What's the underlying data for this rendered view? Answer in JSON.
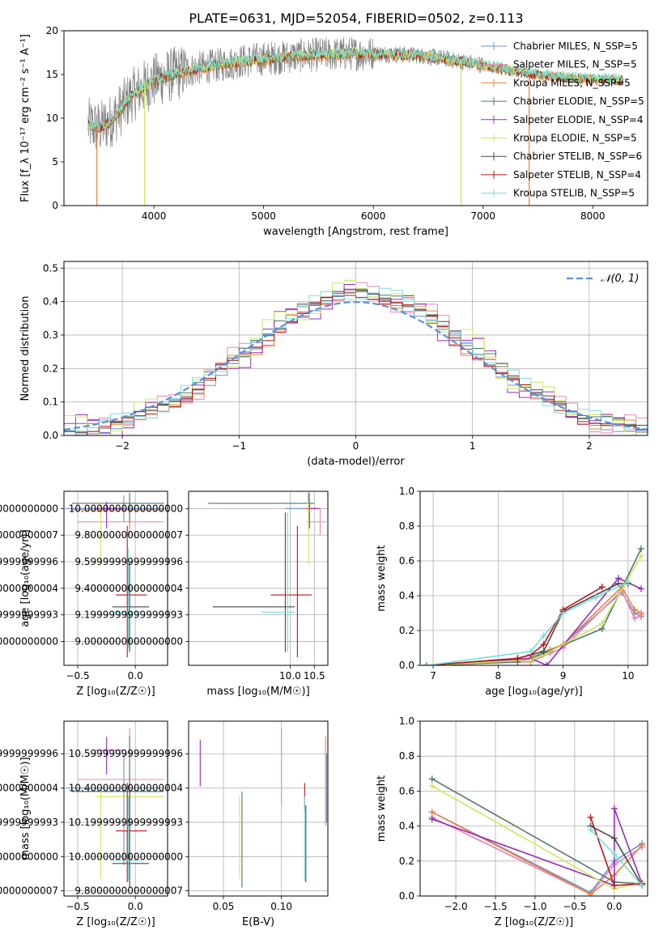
{
  "figure_title": "PLATE=0631, MJD=52054, FIBERID=0502, z=0.113",
  "colors": {
    "Chabrier MILES": "#6f8fd0",
    "Salpeter MILES": "#e884b8",
    "Kroupa MILES": "#e8823c",
    "Chabrier ELODIE": "#4f7a68",
    "Salpeter ELODIE": "#9a2cb8",
    "Kroupa ELODIE": "#c9e85a",
    "Chabrier STELIB": "#4a4a4a",
    "Salpeter STELIB": "#b81818",
    "Kroupa STELIB": "#78dcdc",
    "normal": "#5b8fd9",
    "grid": "#b0b0b0"
  },
  "chart_data": [
    {
      "id": "spectrum",
      "type": "line",
      "title": "PLATE=0631, MJD=52054, FIBERID=0502, z=0.113",
      "xlabel": "wavelength [Angstrom, rest frame]",
      "ylabel": "Flux [f_λ 10⁻¹⁷ erg cm⁻² s⁻¹ A⁻¹]",
      "xlim": [
        3180,
        8500
      ],
      "ylim": [
        0,
        20
      ],
      "xticks": [
        4000,
        5000,
        6000,
        7000,
        8000
      ],
      "yticks": [
        0,
        5,
        10,
        15,
        20
      ],
      "grid": false,
      "legend": "top-right",
      "legend_entries": [
        "Chabrier MILES, N_SSP=5",
        "Salpeter MILES, N_SSP=5",
        "Kroupa MILES, N_SSP=5",
        "Chabrier ELODIE, N_SSP=5",
        "Salpeter ELODIE, N_SSP=4",
        "Kroupa ELODIE, N_SSP=5",
        "Chabrier STELIB, N_SSP=6",
        "Salpeter STELIB, N_SSP=4",
        "Kroupa STELIB, N_SSP=5"
      ],
      "continuum": {
        "x": [
          3400,
          3500,
          3600,
          3700,
          3800,
          3900,
          4000,
          4200,
          4400,
          4600,
          4800,
          5000,
          5200,
          5400,
          5600,
          5800,
          6000,
          6200,
          6400,
          6600,
          6800,
          7000,
          7200,
          7400,
          7600,
          7800,
          8000,
          8280
        ],
        "y": [
          9.2,
          8.9,
          9.6,
          11.0,
          12.6,
          13.5,
          14.3,
          15.1,
          15.7,
          16.1,
          16.5,
          16.8,
          17.0,
          17.2,
          17.3,
          17.4,
          17.4,
          17.3,
          17.2,
          16.9,
          16.5,
          16.1,
          15.6,
          15.2,
          14.8,
          14.6,
          14.5,
          14.4
        ]
      },
      "spikes": [
        [
          3480,
          0
        ],
        [
          3915,
          0
        ],
        [
          6800,
          0
        ],
        [
          7420,
          0
        ]
      ]
    },
    {
      "id": "residuals",
      "type": "line",
      "xlabel": "(data-model)/error",
      "ylabel": "Normed distribution",
      "xlim": [
        -2.5,
        2.5
      ],
      "ylim": [
        0,
        0.52
      ],
      "xticks": [
        -2,
        -1,
        0,
        1,
        2
      ],
      "yticks": [
        0.0,
        0.1,
        0.2,
        0.3,
        0.4,
        0.5
      ],
      "grid": true,
      "legend": "top-right",
      "legend_entries": [
        "𝒩(0, 1)"
      ],
      "bin_width": 0.1,
      "series": [
        {
          "name": "Chabrier MILES",
          "shift": 0.0,
          "amp": 0.0
        },
        {
          "name": "Salpeter MILES",
          "shift": 0.5,
          "amp": 0.03
        },
        {
          "name": "Kroupa MILES",
          "shift": 1.1,
          "amp": 0.02
        },
        {
          "name": "Chabrier ELODIE",
          "shift": 1.7,
          "amp": 0.01
        },
        {
          "name": "Salpeter ELODIE",
          "shift": 2.3,
          "amp": 0.035
        },
        {
          "name": "Kroupa ELODIE",
          "shift": 2.9,
          "amp": 0.03
        },
        {
          "name": "Chabrier STELIB",
          "shift": 3.5,
          "amp": 0.0
        },
        {
          "name": "Salpeter STELIB",
          "shift": 4.1,
          "amp": 0.0
        },
        {
          "name": "Kroupa STELIB",
          "shift": 4.7,
          "amp": 0.015
        }
      ]
    },
    {
      "id": "age-vs-z",
      "type": "scatter",
      "xlabel": "Z [log₁₀(Z/Z☉)]",
      "ylabel": "age  [log₁₀(age/yr)]",
      "xlim": [
        -0.62,
        0.28
      ],
      "ylim": [
        8.82,
        10.13
      ],
      "xticks": [
        -0.5,
        0.0
      ],
      "yticks": [
        9.0,
        9.2,
        9.4,
        9.6,
        9.8,
        10.0
      ],
      "grid": true,
      "points": [
        {
          "name": "Chabrier MILES",
          "x": -0.1,
          "xlo": -0.6,
          "xhi": 0.25,
          "y": 10.0,
          "ylo": 9.9,
          "yhi": 10.1
        },
        {
          "name": "Salpeter MILES",
          "x": -0.05,
          "xlo": -0.5,
          "xhi": 0.25,
          "y": 9.9,
          "ylo": 9.8,
          "yhi": 10.0
        },
        {
          "name": "Kroupa MILES",
          "x": -0.05,
          "xlo": -0.55,
          "xhi": 0.25,
          "y": 9.99,
          "ylo": 9.85,
          "yhi": 10.12
        },
        {
          "name": "Chabrier ELODIE",
          "x": -0.05,
          "xlo": -0.55,
          "xhi": 0.25,
          "y": 10.04,
          "ylo": 9.9,
          "yhi": 10.12
        },
        {
          "name": "Salpeter ELODIE",
          "x": -0.25,
          "xlo": -0.35,
          "xhi": -0.1,
          "y": 10.0,
          "ylo": 9.85,
          "yhi": 10.05
        },
        {
          "name": "Kroupa ELODIE",
          "x": -0.3,
          "xlo": -0.35,
          "xhi": -0.25,
          "y": 9.98,
          "ylo": 9.58,
          "yhi": 10.05
        },
        {
          "name": "Chabrier STELIB",
          "x": -0.05,
          "xlo": -0.2,
          "xhi": 0.12,
          "y": 9.26,
          "ylo": 8.92,
          "yhi": 9.6
        },
        {
          "name": "Salpeter STELIB",
          "x": -0.07,
          "xlo": -0.17,
          "xhi": 0.1,
          "y": 9.35,
          "ylo": 8.88,
          "yhi": 9.87
        },
        {
          "name": "Kroupa STELIB",
          "x": -0.06,
          "xlo": -0.2,
          "xhi": 0.05,
          "y": 9.22,
          "ylo": 8.95,
          "yhi": 9.7
        }
      ]
    },
    {
      "id": "age-vs-mass",
      "type": "scatter",
      "xlabel": "mass [log₁₀(M/M☉)]",
      "ylabel": "",
      "xlim": [
        7.9,
        10.78
      ],
      "ylim": [
        8.82,
        10.13
      ],
      "xticks": [
        10.0,
        10.5
      ],
      "yticks": [
        9.0,
        9.2,
        9.4,
        9.6,
        9.8,
        10.0
      ],
      "grid": true,
      "points": [
        {
          "name": "Chabrier MILES",
          "x": 10.38,
          "xlo": 9.9,
          "xhi": 10.55,
          "y": 10.0,
          "ylo": 9.92,
          "yhi": 10.1
        },
        {
          "name": "Salpeter MILES",
          "x": 10.62,
          "xlo": 10.35,
          "xhi": 10.75,
          "y": 9.9,
          "ylo": 9.8,
          "yhi": 10.0
        },
        {
          "name": "Kroupa MILES",
          "x": 10.4,
          "xlo": 10.3,
          "xhi": 10.55,
          "y": 10.0,
          "ylo": 9.85,
          "yhi": 10.12
        },
        {
          "name": "Chabrier ELODIE",
          "x": 10.38,
          "xlo": 8.3,
          "xhi": 10.5,
          "y": 10.04,
          "ylo": 9.92,
          "yhi": 10.12
        },
        {
          "name": "Salpeter ELODIE",
          "x": 10.4,
          "xlo": 10.35,
          "xhi": 10.62,
          "y": 10.0,
          "ylo": 9.85,
          "yhi": 10.05
        },
        {
          "name": "Kroupa ELODIE",
          "x": 10.38,
          "xlo": 10.35,
          "xhi": 10.45,
          "y": 9.98,
          "ylo": 9.58,
          "yhi": 10.05
        },
        {
          "name": "Chabrier STELIB",
          "x": 9.9,
          "xlo": 8.4,
          "xhi": 10.1,
          "y": 9.26,
          "ylo": 8.92,
          "yhi": 9.97
        },
        {
          "name": "Salpeter STELIB",
          "x": 10.15,
          "xlo": 9.6,
          "xhi": 10.45,
          "y": 9.35,
          "ylo": 8.88,
          "yhi": 9.87
        },
        {
          "name": "Kroupa STELIB",
          "x": 9.95,
          "xlo": 9.4,
          "xhi": 10.1,
          "y": 9.22,
          "ylo": 8.92,
          "yhi": 9.97
        }
      ]
    },
    {
      "id": "mass-weight-vs-age",
      "type": "line",
      "xlabel": "age  [log₁₀(age/yr)]",
      "ylabel": "mass weight",
      "xlim": [
        6.8,
        10.3
      ],
      "ylim": [
        0,
        1.0
      ],
      "xticks": [
        7,
        8,
        9,
        10
      ],
      "yticks": [
        0.0,
        0.2,
        0.4,
        0.6,
        0.8,
        1.0
      ],
      "grid": true,
      "series": [
        {
          "name": "Chabrier MILES",
          "x": [
            6.9,
            8.5,
            8.8,
            9.0,
            9.9,
            10.1,
            10.2
          ],
          "y": [
            0.0,
            0.03,
            0.08,
            0.12,
            0.42,
            0.3,
            0.28
          ]
        },
        {
          "name": "Salpeter MILES",
          "x": [
            6.9,
            8.5,
            8.8,
            9.0,
            9.9,
            10.1,
            10.2
          ],
          "y": [
            0.0,
            0.02,
            0.07,
            0.1,
            0.43,
            0.27,
            0.29
          ]
        },
        {
          "name": "Kroupa MILES",
          "x": [
            6.9,
            8.5,
            8.8,
            9.0,
            9.9,
            10.1,
            10.2
          ],
          "y": [
            0.0,
            0.03,
            0.09,
            0.12,
            0.45,
            0.32,
            0.3
          ]
        },
        {
          "name": "Chabrier ELODIE",
          "x": [
            6.9,
            8.3,
            8.7,
            9.6,
            10.2
          ],
          "y": [
            0.0,
            0.02,
            0.07,
            0.21,
            0.67
          ]
        },
        {
          "name": "Salpeter ELODIE",
          "x": [
            6.9,
            8.5,
            8.75,
            9.85,
            10.2
          ],
          "y": [
            0.0,
            0.04,
            0.0,
            0.5,
            0.44
          ]
        },
        {
          "name": "Kroupa ELODIE",
          "x": [
            6.9,
            8.5,
            8.7,
            9.6,
            10.2
          ],
          "y": [
            0.0,
            0.03,
            0.06,
            0.24,
            0.63
          ]
        },
        {
          "name": "Chabrier STELIB",
          "x": [
            6.9,
            8.3,
            8.7,
            9.0,
            9.85,
            10.0
          ],
          "y": [
            0.0,
            0.04,
            0.08,
            0.31,
            0.47,
            0.47
          ]
        },
        {
          "name": "Salpeter STELIB",
          "x": [
            6.9,
            8.3,
            8.5,
            8.7,
            9.0,
            9.6
          ],
          "y": [
            0.0,
            0.04,
            0.06,
            0.12,
            0.32,
            0.45
          ]
        },
        {
          "name": "Kroupa STELIB",
          "x": [
            6.9,
            8.5,
            8.7,
            9.0,
            9.5,
            10.0
          ],
          "y": [
            0.0,
            0.08,
            0.17,
            0.3,
            0.39,
            0.48
          ]
        }
      ]
    },
    {
      "id": "mass-vs-z",
      "type": "scatter",
      "xlabel": "Z [log₁₀(Z/Z☉)]",
      "ylabel": "mass [log₁₀(M/M☉)]",
      "xlim": [
        -0.62,
        0.28
      ],
      "ylim": [
        9.77,
        10.79
      ],
      "xticks": [
        -0.5,
        0.0
      ],
      "yticks": [
        9.8,
        10.0,
        10.2,
        10.4,
        10.6
      ],
      "grid": true,
      "points": [
        {
          "name": "Chabrier MILES",
          "x": -0.1,
          "xlo": -0.6,
          "xhi": 0.25,
          "y": 10.4,
          "ylo": 9.95,
          "yhi": 10.6
        },
        {
          "name": "Salpeter MILES",
          "x": -0.05,
          "xlo": -0.5,
          "xhi": 0.25,
          "y": 10.45,
          "ylo": 10.1,
          "yhi": 10.75
        },
        {
          "name": "Kroupa MILES",
          "x": -0.05,
          "xlo": -0.55,
          "xhi": 0.25,
          "y": 10.38,
          "ylo": 10.0,
          "yhi": 10.7
        },
        {
          "name": "Chabrier ELODIE",
          "x": -0.05,
          "xlo": -0.55,
          "xhi": 0.25,
          "y": 10.38,
          "ylo": 9.82,
          "yhi": 10.7
        },
        {
          "name": "Salpeter ELODIE",
          "x": -0.25,
          "xlo": -0.35,
          "xhi": -0.1,
          "y": 10.62,
          "ylo": 10.48,
          "yhi": 10.7
        },
        {
          "name": "Kroupa ELODIE",
          "x": -0.3,
          "xlo": -0.35,
          "xhi": 0.25,
          "y": 10.35,
          "ylo": 9.87,
          "yhi": 10.4
        },
        {
          "name": "Chabrier STELIB",
          "x": -0.05,
          "xlo": -0.2,
          "xhi": 0.12,
          "y": 9.96,
          "ylo": 9.82,
          "yhi": 10.38
        },
        {
          "name": "Salpeter STELIB",
          "x": -0.07,
          "xlo": -0.17,
          "xhi": 0.1,
          "y": 10.15,
          "ylo": 9.85,
          "yhi": 10.43
        },
        {
          "name": "Kroupa STELIB",
          "x": -0.06,
          "xlo": -0.2,
          "xhi": 0.05,
          "y": 9.98,
          "ylo": 9.86,
          "yhi": 10.35
        }
      ]
    },
    {
      "id": "mass-vs-ebv",
      "type": "scatter",
      "xlabel": "E(B-V)",
      "ylabel": "",
      "xlim": [
        0.02,
        0.14
      ],
      "ylim": [
        9.77,
        10.79
      ],
      "xticks": [
        0.05,
        0.1
      ],
      "yticks": [
        9.8,
        10.0,
        10.2,
        10.4,
        10.6
      ],
      "grid": true,
      "points": [
        {
          "name": "Salpeter ELODIE",
          "x": 0.03,
          "ylo": 10.41,
          "yhi": 10.68
        },
        {
          "name": "Kroupa ELODIE",
          "x": 0.064,
          "ylo": 9.87,
          "yhi": 10.35
        },
        {
          "name": "Chabrier ELODIE",
          "x": 0.066,
          "ylo": 9.82,
          "yhi": 10.38
        },
        {
          "name": "Salpeter MILES",
          "x": 0.1,
          "ylo": 10.3,
          "yhi": 10.75
        },
        {
          "name": "Salpeter STELIB",
          "x": 0.12,
          "ylo": 10.27,
          "yhi": 10.43
        },
        {
          "name": "Kroupa STELIB",
          "x": 0.12,
          "ylo": 9.86,
          "yhi": 10.35
        },
        {
          "name": "Chabrier STELIB",
          "x": 0.121,
          "ylo": 9.85,
          "yhi": 10.3
        },
        {
          "name": "Kroupa MILES",
          "x": 0.138,
          "ylo": 10.18,
          "yhi": 10.7
        },
        {
          "name": "Chabrier MILES",
          "x": 0.139,
          "ylo": 10.2,
          "yhi": 10.6
        }
      ]
    },
    {
      "id": "mass-weight-vs-z",
      "type": "line",
      "xlabel": "Z [log₁₀(Z/Z☉)]",
      "ylabel": "mass weight",
      "xlim": [
        -2.45,
        0.42
      ],
      "ylim": [
        0,
        1.0
      ],
      "xticks": [
        -2.0,
        -1.5,
        -1.0,
        -0.5,
        0.0
      ],
      "yticks": [
        0.0,
        0.2,
        0.4,
        0.6,
        0.8,
        1.0
      ],
      "grid": true,
      "series": [
        {
          "name": "Chabrier MILES",
          "x": [
            -2.3,
            -0.3,
            0.0,
            0.35
          ],
          "y": [
            0.48,
            0.02,
            0.2,
            0.3
          ]
        },
        {
          "name": "Salpeter MILES",
          "x": [
            -2.3,
            -0.3,
            0.0,
            0.35
          ],
          "y": [
            0.45,
            0.01,
            0.18,
            0.28
          ]
        },
        {
          "name": "Kroupa MILES",
          "x": [
            -2.3,
            -0.3,
            0.0,
            0.35
          ],
          "y": [
            0.48,
            0.01,
            0.12,
            0.29
          ]
        },
        {
          "name": "Chabrier ELODIE",
          "x": [
            -2.3,
            0.0,
            0.35
          ],
          "y": [
            0.67,
            0.08,
            0.07
          ]
        },
        {
          "name": "Salpeter ELODIE",
          "x": [
            -2.3,
            0.0,
            0.0,
            0.35
          ],
          "y": [
            0.44,
            0.06,
            0.5,
            0.07
          ]
        },
        {
          "name": "Kroupa ELODIE",
          "x": [
            -2.3,
            0.0,
            0.35
          ],
          "y": [
            0.63,
            0.04,
            0.08
          ]
        },
        {
          "name": "Chabrier STELIB",
          "x": [
            -0.3,
            0.0,
            0.35
          ],
          "y": [
            0.4,
            0.33,
            0.06
          ]
        },
        {
          "name": "Salpeter STELIB",
          "x": [
            -0.3,
            0.0,
            0.35
          ],
          "y": [
            0.45,
            0.06,
            0.07
          ]
        },
        {
          "name": "Kroupa STELIB",
          "x": [
            -0.3,
            0.0,
            0.35
          ],
          "y": [
            0.38,
            0.24,
            0.06
          ]
        }
      ]
    }
  ]
}
